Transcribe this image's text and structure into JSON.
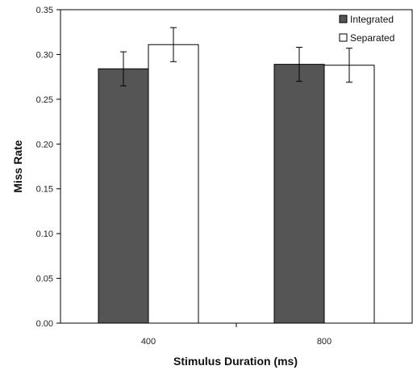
{
  "chart_data": {
    "type": "bar",
    "title": "",
    "xlabel": "Stimulus Duration (ms)",
    "ylabel": "Miss Rate",
    "categories": [
      "400",
      "800"
    ],
    "ylim": [
      0,
      0.35
    ],
    "yticks": [
      "0.00",
      "0.05",
      "0.10",
      "0.15",
      "0.20",
      "0.25",
      "0.30",
      "0.35"
    ],
    "grid": false,
    "legend_position": "top-right",
    "series": [
      {
        "name": "Integrated",
        "color": "#555555",
        "values": [
          0.284,
          0.289
        ],
        "errors": [
          0.019,
          0.019
        ]
      },
      {
        "name": "Separated",
        "color": "#ffffff",
        "values": [
          0.311,
          0.288
        ],
        "errors": [
          0.019,
          0.019
        ]
      }
    ]
  }
}
